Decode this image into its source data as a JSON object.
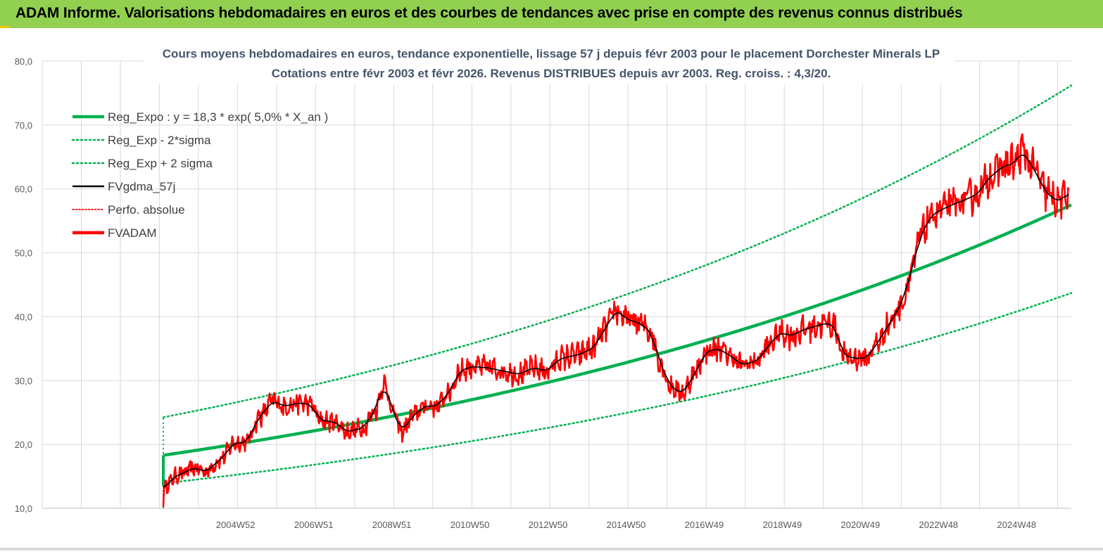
{
  "header": {
    "title": "ADAM Informe. Valorisations hebdomadaires en euros et des courbes de tendances avec prise en compte des revenus connus distribués"
  },
  "chart_data": {
    "type": "line",
    "title_line1": "Cours moyens hebdomadaires en euros, tendance exponentielle, lissage 57 j depuis févr 2003 pour le placement Dorchester Minerals LP",
    "title_line2": "Cotations entre févr 2003 et févr 2026. Revenus DISTRIBUES depuis avr 2003. Reg. croiss. : 4,3/20.",
    "ylim": [
      10,
      80
    ],
    "xlim": [
      2000.0,
      2026.35
    ],
    "yticks": [
      {
        "value": 10,
        "label": "10,0"
      },
      {
        "value": 20,
        "label": "20,0"
      },
      {
        "value": 30,
        "label": "30,0"
      },
      {
        "value": 40,
        "label": "40,0"
      },
      {
        "value": 50,
        "label": "50,0"
      },
      {
        "value": 60,
        "label": "60,0"
      },
      {
        "value": 70,
        "label": "70,0"
      },
      {
        "value": 80,
        "label": "80,0"
      }
    ],
    "xticks": [
      {
        "x": 2004.95,
        "label": "2004W52"
      },
      {
        "x": 2006.95,
        "label": "2006W51"
      },
      {
        "x": 2008.95,
        "label": "2008W51"
      },
      {
        "x": 2010.95,
        "label": "2010W50"
      },
      {
        "x": 2012.95,
        "label": "2012W50"
      },
      {
        "x": 2014.95,
        "label": "2014W50"
      },
      {
        "x": 2016.95,
        "label": "2016W49"
      },
      {
        "x": 2018.95,
        "label": "2018W49"
      },
      {
        "x": 2020.95,
        "label": "2020W49"
      },
      {
        "x": 2022.95,
        "label": "2022W48"
      },
      {
        "x": 2024.95,
        "label": "2024W48"
      }
    ],
    "legend_position": "top-left",
    "regression": {
      "a": 18.3,
      "rate": 0.05,
      "start": 2003.1,
      "lower_factor": 0.76,
      "upper_factor": 1.325
    },
    "series": [
      {
        "name": "Reg_Expo : y = 18,3 * exp( 5,0% *  X_an )",
        "color": "#00b050",
        "style": "solid-thick"
      },
      {
        "name": "Reg_Exp - 2*sigma",
        "color": "#00b050",
        "style": "dotted"
      },
      {
        "name": "Reg_Exp + 2 sigma",
        "color": "#00b050",
        "style": "dotted"
      },
      {
        "name": "FVgdma_57j",
        "color": "#000000",
        "style": "solid"
      },
      {
        "name": "Perfo. absolue",
        "color": "#ff0000",
        "style": "dotted"
      },
      {
        "name": "FVADAM",
        "color": "#ff0000",
        "style": "solid-thick"
      }
    ],
    "fvadam_keypoints": [
      [
        2003.1,
        10.2
      ],
      [
        2003.12,
        13.5
      ],
      [
        2003.5,
        15.3
      ],
      [
        2003.9,
        16.3
      ],
      [
        2004.2,
        15.8
      ],
      [
        2004.6,
        17.8
      ],
      [
        2004.9,
        20.2
      ],
      [
        2005.2,
        20.3
      ],
      [
        2005.6,
        24.5
      ],
      [
        2005.9,
        26.8
      ],
      [
        2006.2,
        26.0
      ],
      [
        2006.6,
        26.5
      ],
      [
        2006.9,
        26.2
      ],
      [
        2007.1,
        23.8
      ],
      [
        2007.5,
        23.5
      ],
      [
        2007.8,
        22.0
      ],
      [
        2008.2,
        22.5
      ],
      [
        2008.5,
        25.0
      ],
      [
        2008.75,
        29.5
      ],
      [
        2009.0,
        25.0
      ],
      [
        2009.2,
        22.0
      ],
      [
        2009.5,
        24.5
      ],
      [
        2009.8,
        26.0
      ],
      [
        2010.1,
        26.0
      ],
      [
        2010.4,
        28.0
      ],
      [
        2010.7,
        31.5
      ],
      [
        2011.0,
        32.2
      ],
      [
        2011.4,
        32.0
      ],
      [
        2011.8,
        31.5
      ],
      [
        2012.2,
        31.0
      ],
      [
        2012.6,
        32.0
      ],
      [
        2012.9,
        31.5
      ],
      [
        2013.3,
        33.5
      ],
      [
        2013.7,
        34.0
      ],
      [
        2014.1,
        35.0
      ],
      [
        2014.4,
        38.0
      ],
      [
        2014.7,
        41.0
      ],
      [
        2015.0,
        39.5
      ],
      [
        2015.3,
        39.0
      ],
      [
        2015.6,
        37.5
      ],
      [
        2015.8,
        33.0
      ],
      [
        2016.1,
        29.0
      ],
      [
        2016.4,
        28.0
      ],
      [
        2016.7,
        31.0
      ],
      [
        2017.0,
        34.5
      ],
      [
        2017.3,
        35.0
      ],
      [
        2017.6,
        34.0
      ],
      [
        2017.9,
        32.5
      ],
      [
        2018.3,
        33.0
      ],
      [
        2018.6,
        35.5
      ],
      [
        2018.9,
        37.5
      ],
      [
        2019.2,
        37.0
      ],
      [
        2019.5,
        38.0
      ],
      [
        2019.8,
        38.5
      ],
      [
        2020.1,
        39.0
      ],
      [
        2020.3,
        38.5
      ],
      [
        2020.5,
        34.0
      ],
      [
        2020.8,
        33.5
      ],
      [
        2021.1,
        33.5
      ],
      [
        2021.4,
        36.0
      ],
      [
        2021.7,
        39.0
      ],
      [
        2022.0,
        42.0
      ],
      [
        2022.3,
        48.0
      ],
      [
        2022.5,
        53.0
      ],
      [
        2022.8,
        56.0
      ],
      [
        2023.1,
        57.0
      ],
      [
        2023.5,
        58.0
      ],
      [
        2023.9,
        59.0
      ],
      [
        2024.3,
        62.0
      ],
      [
        2024.6,
        63.5
      ],
      [
        2024.9,
        64.0
      ],
      [
        2025.1,
        66.0
      ],
      [
        2025.4,
        63.0
      ],
      [
        2025.7,
        59.5
      ],
      [
        2026.0,
        58.0
      ],
      [
        2026.15,
        58.5
      ],
      [
        2026.3,
        60.0
      ]
    ]
  }
}
